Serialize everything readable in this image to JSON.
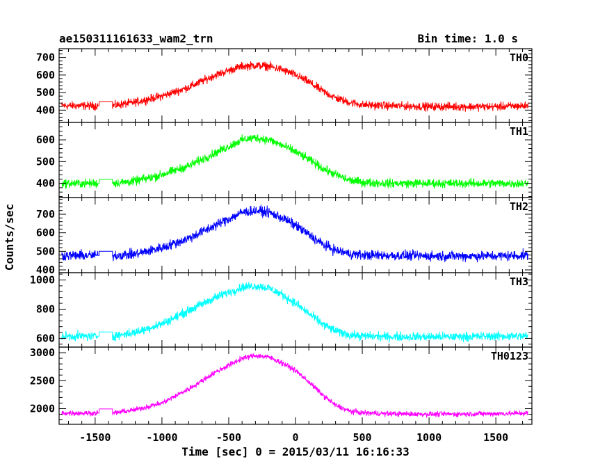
{
  "chart_data": {
    "type": "line",
    "title": "ae150311161633_wam2_trn",
    "subtitle": "Bin time: 1.0 s",
    "xlabel": "Time [sec] 0 = 2015/03/11 16:16:33",
    "ylabel": "Counts/sec",
    "xlim": [
      -1770,
      1770
    ],
    "x_ticks": [
      -1500,
      -1000,
      -500,
      0,
      500,
      1000,
      1500
    ],
    "data_gap": [
      -1480,
      -1370
    ],
    "grid": false,
    "panels": [
      {
        "name": "TH0",
        "color": "#ff0000",
        "ylim": [
          330,
          750
        ],
        "y_ticks": [
          400,
          500,
          600,
          700
        ],
        "series": [
          {
            "x": [
              -1750,
              -1500,
              -1370,
              -1200,
              -1000,
              -800,
              -600,
              -400,
              -300,
              -200,
              -100,
              0,
              100,
              200,
              300,
              400,
              500,
              700,
              1000,
              1300,
              1500,
              1740
            ],
            "y": [
              425,
              425,
              425,
              445,
              480,
              530,
              600,
              650,
              655,
              650,
              630,
              600,
              560,
              510,
              470,
              445,
              430,
              425,
              420,
              420,
              420,
              425
            ]
          }
        ],
        "noise_amplitude": 35
      },
      {
        "name": "TH1",
        "color": "#00ff00",
        "ylim": [
          335,
          680
        ],
        "y_ticks": [
          400,
          500,
          600
        ],
        "series": [
          {
            "x": [
              -1750,
              -1500,
              -1370,
              -1200,
              -1000,
              -800,
              -600,
              -400,
              -300,
              -200,
              -100,
              0,
              100,
              200,
              300,
              400,
              500,
              700,
              1000,
              1300,
              1500,
              1740
            ],
            "y": [
              400,
              400,
              400,
              410,
              440,
              480,
              540,
              600,
              610,
              600,
              575,
              545,
              510,
              470,
              440,
              415,
              405,
              400,
              400,
              400,
              400,
              400
            ]
          }
        ],
        "noise_amplitude": 30
      },
      {
        "name": "TH2",
        "color": "#0000ff",
        "ylim": [
          385,
          790
        ],
        "y_ticks": [
          400,
          500,
          600,
          700
        ],
        "series": [
          {
            "x": [
              -1750,
              -1500,
              -1370,
              -1200,
              -1000,
              -800,
              -600,
              -400,
              -300,
              -200,
              -100,
              0,
              100,
              200,
              300,
              400,
              500,
              700,
              1000,
              1300,
              1500,
              1740
            ],
            "y": [
              478,
              478,
              478,
              485,
              520,
              570,
              640,
              710,
              720,
              710,
              680,
              640,
              590,
              540,
              505,
              488,
              480,
              478,
              475,
              475,
              475,
              478
            ]
          }
        ],
        "noise_amplitude": 40
      },
      {
        "name": "TH3",
        "color": "#00ffff",
        "ylim": [
          540,
          1050
        ],
        "y_ticks": [
          600,
          800,
          1000
        ],
        "series": [
          {
            "x": [
              -1750,
              -1500,
              -1370,
              -1200,
              -1000,
              -800,
              -600,
              -400,
              -300,
              -200,
              -100,
              0,
              100,
              200,
              300,
              400,
              500,
              700,
              1000,
              1300,
              1500,
              1740
            ],
            "y": [
              615,
              615,
              615,
              640,
              700,
              790,
              880,
              950,
              960,
              945,
              900,
              840,
              770,
              700,
              650,
              625,
              615,
              612,
              610,
              612,
              615,
              615
            ]
          }
        ],
        "noise_amplitude": 45
      },
      {
        "name": "TH0123",
        "color": "#ff00ff",
        "ylim": [
          1720,
          3100
        ],
        "y_ticks": [
          2000,
          2500,
          3000
        ],
        "series": [
          {
            "x": [
              -1750,
              -1500,
              -1370,
              -1200,
              -1000,
              -800,
              -600,
              -400,
              -300,
              -200,
              -100,
              0,
              100,
              200,
              300,
              400,
              500,
              700,
              1000,
              1300,
              1500,
              1740
            ],
            "y": [
              1920,
              1920,
              1920,
              1980,
              2100,
              2350,
              2650,
              2900,
              2950,
              2920,
              2820,
              2680,
              2480,
              2250,
              2060,
              1960,
              1925,
              1910,
              1900,
              1905,
              1910,
              1920
            ]
          }
        ],
        "noise_amplitude": 70
      }
    ]
  }
}
